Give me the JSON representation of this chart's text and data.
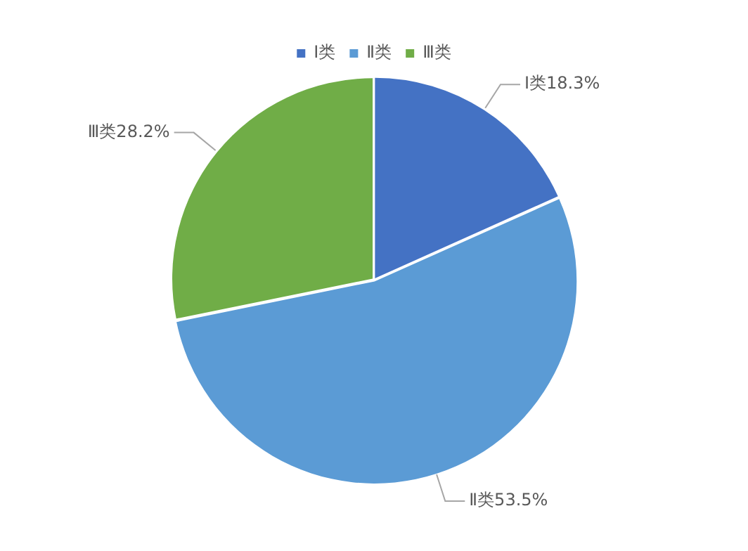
{
  "chart_data": {
    "type": "pie",
    "categories": [
      "Ⅰ类",
      "Ⅱ类",
      "Ⅲ类"
    ],
    "values": [
      18.3,
      53.5,
      28.2
    ],
    "colors": [
      "#4472c4",
      "#5b9bd5",
      "#70ad47"
    ],
    "value_labels": [
      "Ⅰ类18.3%",
      "Ⅱ类53.5%",
      "Ⅲ类28.2%"
    ],
    "legend": "top"
  }
}
